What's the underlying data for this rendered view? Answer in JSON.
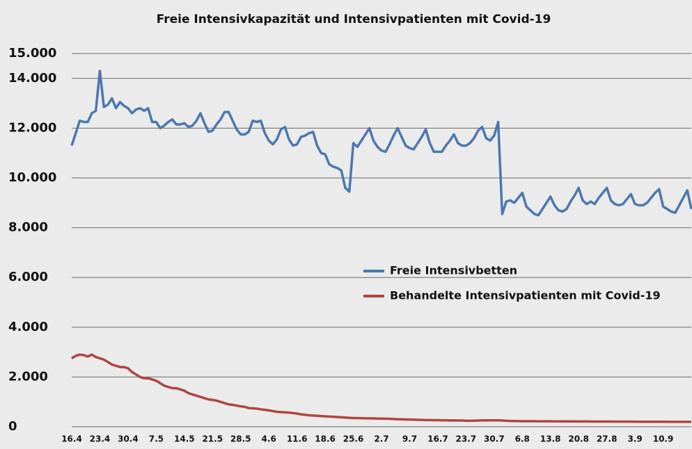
{
  "chart_data": {
    "type": "line",
    "title": "Freie Intensivkapazität und Intensivpatienten mit Covid-19",
    "categories": [
      "16.4",
      null,
      null,
      null,
      null,
      null,
      null,
      "23.4",
      null,
      null,
      null,
      null,
      null,
      null,
      "30.4",
      null,
      null,
      null,
      null,
      null,
      null,
      "7.5",
      null,
      null,
      null,
      null,
      null,
      null,
      "14.5",
      null,
      null,
      null,
      null,
      null,
      null,
      "21.5",
      null,
      null,
      null,
      null,
      null,
      null,
      "28.5",
      null,
      null,
      null,
      null,
      null,
      null,
      "4.6",
      null,
      null,
      null,
      null,
      null,
      null,
      "11.6",
      null,
      null,
      null,
      null,
      null,
      null,
      "18.6",
      null,
      null,
      null,
      null,
      null,
      null,
      "25.6",
      null,
      null,
      null,
      null,
      null,
      null,
      "2.7",
      null,
      null,
      null,
      null,
      null,
      null,
      "9.7",
      null,
      null,
      null,
      null,
      null,
      null,
      "16.7",
      null,
      null,
      null,
      null,
      null,
      null,
      "23.7",
      null,
      null,
      null,
      null,
      null,
      null,
      "30.7",
      null,
      null,
      null,
      null,
      null,
      null,
      "6.8",
      null,
      null,
      null,
      null,
      null,
      null,
      "13.8",
      null,
      null,
      null,
      null,
      null,
      null,
      "20.8",
      null,
      null,
      null,
      null,
      null,
      null,
      "27.8",
      null,
      null,
      null,
      null,
      null,
      null,
      "3.9",
      null,
      null,
      null,
      null,
      null,
      null,
      "10.9",
      null,
      null,
      null,
      null,
      null,
      null,
      null
    ],
    "series": [
      {
        "name": "Freie Intensivbetten",
        "color": "#4a78b0",
        "values": [
          11300,
          11800,
          12300,
          12250,
          12250,
          12600,
          12700,
          14300,
          12850,
          12950,
          13200,
          12800,
          13050,
          12900,
          12800,
          12600,
          12750,
          12800,
          12700,
          12800,
          12250,
          12250,
          12000,
          12100,
          12250,
          12350,
          12150,
          12150,
          12200,
          12050,
          12100,
          12300,
          12600,
          12200,
          11850,
          11900,
          12150,
          12350,
          12650,
          12650,
          12300,
          11950,
          11750,
          11750,
          11850,
          12300,
          12250,
          12300,
          11800,
          11500,
          11350,
          11550,
          11950,
          12050,
          11550,
          11300,
          11350,
          11650,
          11700,
          11800,
          11850,
          11300,
          11000,
          10950,
          10550,
          10450,
          10400,
          10300,
          9600,
          9450,
          11400,
          11250,
          11500,
          11750,
          12000,
          11500,
          11250,
          11100,
          11050,
          11350,
          11700,
          12000,
          11650,
          11300,
          11200,
          11150,
          11400,
          11650,
          11950,
          11400,
          11050,
          11050,
          11050,
          11300,
          11500,
          11750,
          11400,
          11300,
          11300,
          11400,
          11600,
          11900,
          12050,
          11600,
          11500,
          11700,
          12250,
          8550,
          9050,
          9100,
          9000,
          9200,
          9400,
          8850,
          8700,
          8550,
          8500,
          8750,
          9000,
          9250,
          8900,
          8700,
          8650,
          8750,
          9050,
          9300,
          9600,
          9100,
          8950,
          9050,
          8950,
          9200,
          9400,
          9600,
          9100,
          8950,
          8900,
          8950,
          9150,
          9350,
          8950,
          8900,
          8900,
          9000,
          9200,
          9400,
          9550,
          8850,
          8750,
          8650,
          8600,
          8900,
          9200,
          9500,
          8750
        ]
      },
      {
        "name": "Behandelte Intensivpatienten mit Covid-19",
        "color": "#b0443f",
        "values": [
          2750,
          2850,
          2900,
          2880,
          2820,
          2900,
          2800,
          2750,
          2700,
          2600,
          2500,
          2450,
          2400,
          2400,
          2350,
          2200,
          2100,
          2000,
          1950,
          1950,
          1900,
          1850,
          1750,
          1650,
          1600,
          1550,
          1550,
          1500,
          1450,
          1350,
          1300,
          1250,
          1200,
          1150,
          1100,
          1080,
          1050,
          1000,
          950,
          900,
          880,
          850,
          820,
          800,
          750,
          740,
          730,
          700,
          680,
          660,
          630,
          600,
          590,
          580,
          570,
          550,
          530,
          500,
          480,
          460,
          450,
          440,
          430,
          420,
          410,
          400,
          390,
          380,
          370,
          360,
          350,
          350,
          345,
          340,
          340,
          335,
          330,
          330,
          325,
          320,
          310,
          300,
          300,
          295,
          290,
          285,
          280,
          275,
          270,
          270,
          265,
          265,
          260,
          260,
          255,
          255,
          250,
          250,
          240,
          240,
          245,
          250,
          255,
          258,
          260,
          260,
          258,
          250,
          240,
          235,
          230,
          228,
          225,
          224,
          223,
          222,
          221,
          220,
          220,
          219,
          218,
          217,
          216,
          215,
          215,
          214,
          213,
          212,
          212,
          211,
          210,
          210,
          209,
          208,
          208,
          207,
          206,
          206,
          205,
          205,
          204,
          204,
          203,
          203,
          202,
          202,
          201,
          201,
          200,
          200,
          200,
          199,
          199,
          198,
          198
        ]
      }
    ],
    "ylim": [
      0,
      15000
    ],
    "yticks": [
      0,
      {
        "value": 2000,
        "label": "2.000"
      },
      {
        "value": 4000,
        "label": "4.000"
      },
      {
        "value": 6000,
        "label": "6.000"
      },
      {
        "value": 8000,
        "label": "8.000"
      },
      {
        "value": 10000,
        "label": "10.000"
      },
      {
        "value": 12000,
        "label": "12.000"
      },
      {
        "value": 14000,
        "label": "14.000"
      },
      {
        "value": 15000,
        "label": "15.000"
      }
    ],
    "grid": true
  }
}
